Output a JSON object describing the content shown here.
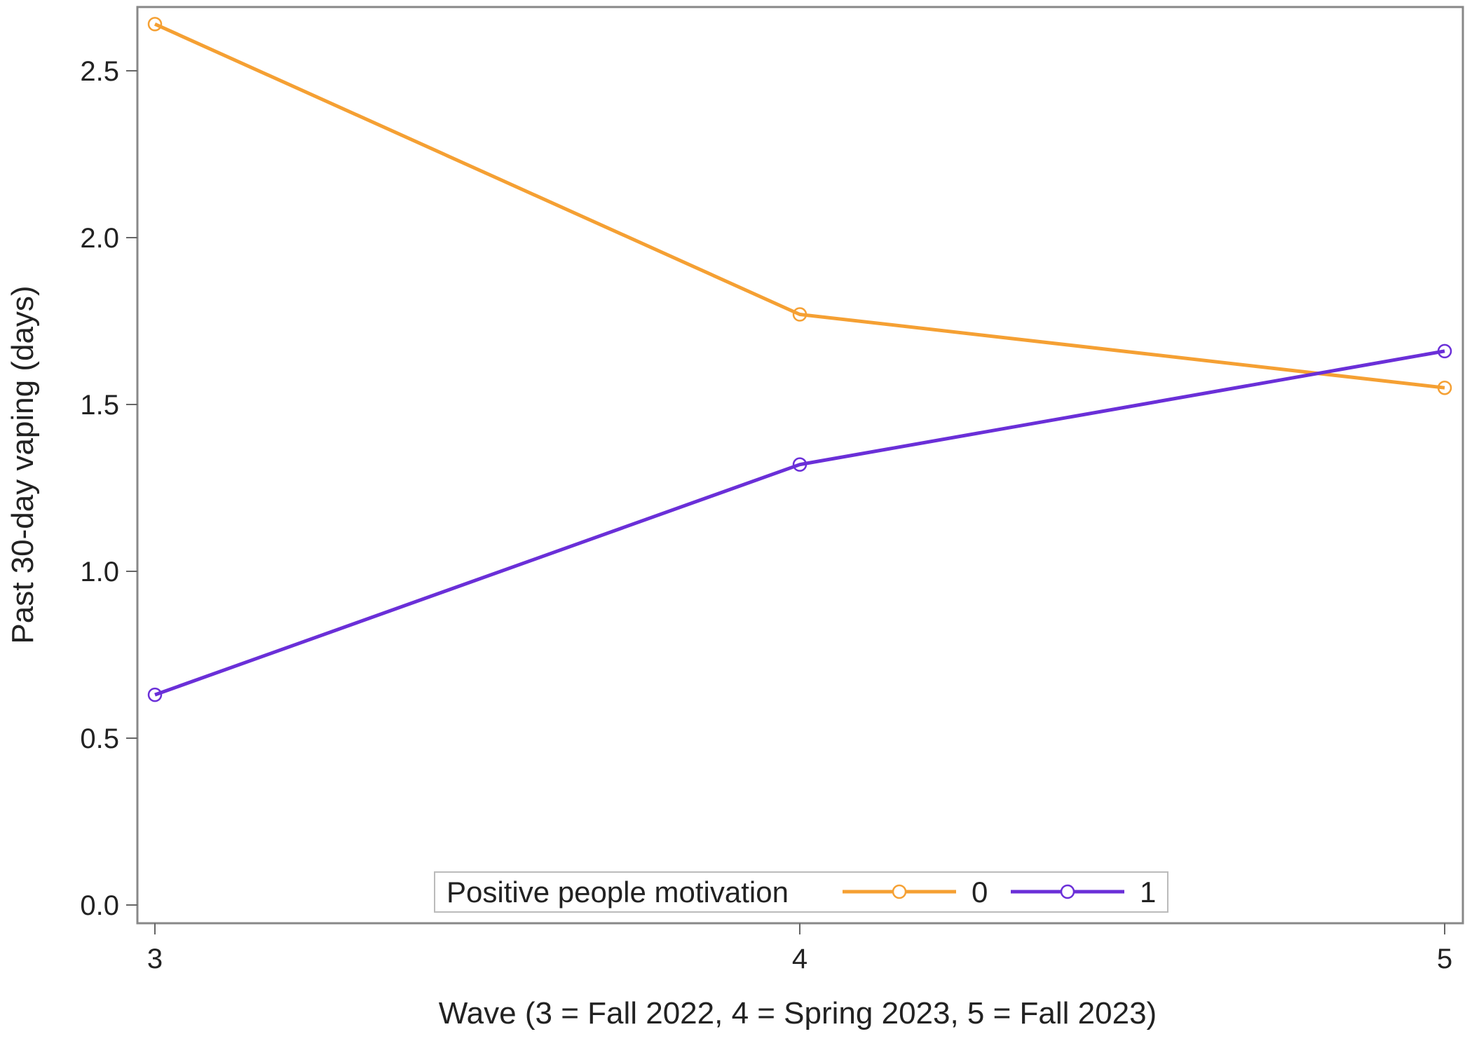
{
  "chart_data": {
    "type": "line",
    "title": "",
    "xlabel": "Wave (3 = Fall 2022, 4 = Spring 2023, 5 = Fall 2023)",
    "ylabel": "Past 30-day vaping (days)",
    "x": [
      3,
      4,
      5
    ],
    "x_ticks": [
      "3",
      "4",
      "5"
    ],
    "xlim": [
      3,
      5
    ],
    "y_ticks": [
      "0.0",
      "0.5",
      "1.0",
      "1.5",
      "2.0",
      "2.5"
    ],
    "ylim": [
      0,
      2.65
    ],
    "grid": false,
    "legend": {
      "title": "Positive people motivation",
      "placement": "bottom-center-inside"
    },
    "series": [
      {
        "name": "0",
        "values": [
          2.64,
          1.77,
          1.55
        ],
        "color": "#F5A033",
        "marker": "circle-open"
      },
      {
        "name": "1",
        "values": [
          0.63,
          1.32,
          1.66
        ],
        "color": "#6A2FD8",
        "marker": "circle-open"
      }
    ]
  }
}
